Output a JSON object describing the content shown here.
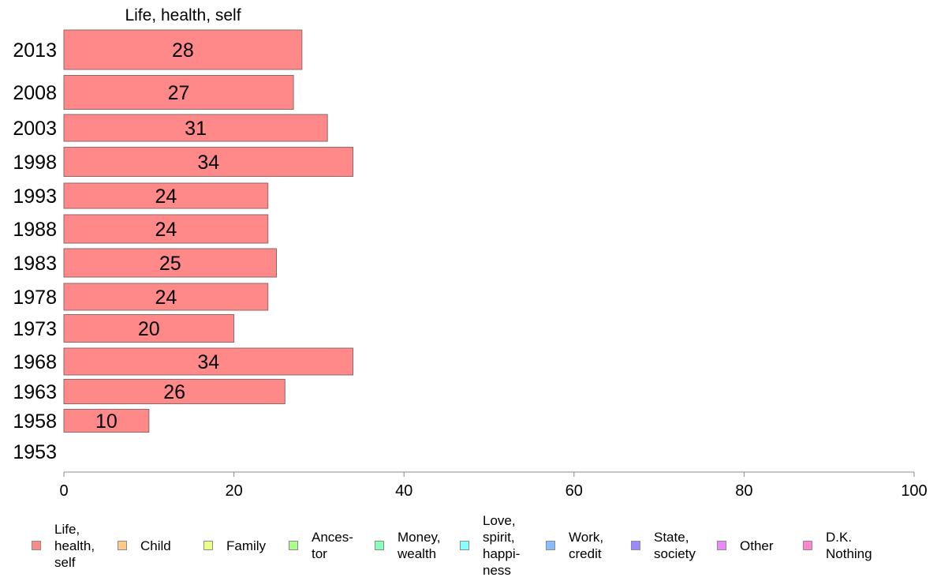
{
  "chart_data": {
    "type": "bar",
    "orientation": "horizontal",
    "title": "Life, health, self",
    "categories": [
      "2013",
      "2008",
      "2003",
      "1998",
      "1993",
      "1988",
      "1983",
      "1978",
      "1973",
      "1968",
      "1963",
      "1958",
      "1953"
    ],
    "series": [
      {
        "name": "Life, health, self",
        "values": [
          28,
          27,
          31,
          34,
          24,
          24,
          25,
          24,
          20,
          34,
          26,
          10,
          null
        ]
      }
    ],
    "data_labels": [
      "28",
      "27",
      "31",
      "34",
      "24",
      "24",
      "25",
      "24",
      "20",
      "34",
      "26",
      "10",
      ""
    ],
    "xlim": [
      0,
      100
    ],
    "xticks": [
      "0",
      "20",
      "40",
      "60",
      "80",
      "100"
    ],
    "grid": false,
    "legend_position": "bottom",
    "bar_color": "#ff8888",
    "legend": [
      {
        "label": "Life,\nhealth,\nself",
        "color": "#ff8888"
      },
      {
        "label": "Child",
        "color": "#ffc98a"
      },
      {
        "label": "Family",
        "color": "#eeff88"
      },
      {
        "label": "Ances-\ntor",
        "color": "#aaff88"
      },
      {
        "label": "Money,\nwealth",
        "color": "#88ffbb"
      },
      {
        "label": "Love,\nspirit,\nhappi-\nness",
        "color": "#88ffff"
      },
      {
        "label": "Work,\ncredit",
        "color": "#88bbff"
      },
      {
        "label": "State,\nsociety",
        "color": "#9988ff"
      },
      {
        "label": "Other",
        "color": "#ee88ff"
      },
      {
        "label": "D.K.\nNothing",
        "color": "#ff88cc"
      }
    ]
  }
}
